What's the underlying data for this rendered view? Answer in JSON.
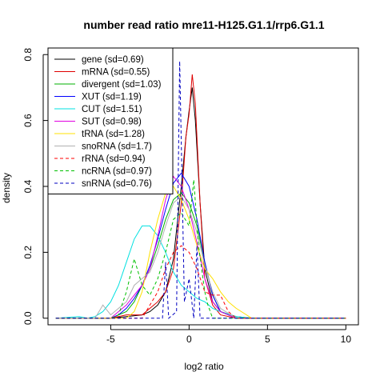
{
  "chart_data": {
    "type": "line",
    "title": "number read ratio mre11-H125.G1.1/rrp6.G1.1",
    "xlabel": "log2 ratio",
    "ylabel": "density",
    "xlim": [
      -9.0,
      10.8
    ],
    "ylim": [
      -0.02,
      0.82
    ],
    "xticks": [
      -5,
      0,
      5,
      10
    ],
    "yticks": [
      0.0,
      0.2,
      0.4,
      0.6,
      0.8
    ],
    "grid": false,
    "legend_position": "top-left",
    "series": [
      {
        "name": "gene (sd=0.69)",
        "color": "#000000",
        "dashed": false,
        "points": [
          [
            -8.5,
            0
          ],
          [
            -5,
            0
          ],
          [
            -4,
            0.005
          ],
          [
            -3,
            0.01
          ],
          [
            -2.5,
            0.02
          ],
          [
            -2,
            0.04
          ],
          [
            -1.5,
            0.08
          ],
          [
            -1,
            0.18
          ],
          [
            -0.5,
            0.4
          ],
          [
            -0.2,
            0.55
          ],
          [
            0,
            0.63
          ],
          [
            0.2,
            0.7
          ],
          [
            0.4,
            0.6
          ],
          [
            0.7,
            0.35
          ],
          [
            1,
            0.15
          ],
          [
            1.5,
            0.05
          ],
          [
            2,
            0.02
          ],
          [
            3,
            0.005
          ],
          [
            4,
            0
          ],
          [
            10,
            0
          ]
        ]
      },
      {
        "name": "mRNA (sd=0.55)",
        "color": "#df0000",
        "dashed": false,
        "points": [
          [
            -8.5,
            0
          ],
          [
            -5,
            0
          ],
          [
            -4,
            0.01
          ],
          [
            -3,
            0.01
          ],
          [
            -2.5,
            0.03
          ],
          [
            -2,
            0.05
          ],
          [
            -1.5,
            0.08
          ],
          [
            -1,
            0.15
          ],
          [
            -0.5,
            0.35
          ],
          [
            -0.2,
            0.55
          ],
          [
            0,
            0.62
          ],
          [
            0.2,
            0.74
          ],
          [
            0.4,
            0.65
          ],
          [
            0.7,
            0.35
          ],
          [
            1,
            0.12
          ],
          [
            1.5,
            0.04
          ],
          [
            2,
            0.01
          ],
          [
            3,
            0
          ],
          [
            10,
            0
          ]
        ]
      },
      {
        "name": "divergent (sd=1.03)",
        "color": "#00b000",
        "dashed": false,
        "points": [
          [
            -8.5,
            0
          ],
          [
            -5,
            0
          ],
          [
            -4.5,
            0.01
          ],
          [
            -4,
            0.02
          ],
          [
            -3.5,
            0.05
          ],
          [
            -3,
            0.1
          ],
          [
            -2.5,
            0.15
          ],
          [
            -2,
            0.22
          ],
          [
            -1.5,
            0.3
          ],
          [
            -1,
            0.36
          ],
          [
            -0.5,
            0.38
          ],
          [
            0,
            0.35
          ],
          [
            0.5,
            0.28
          ],
          [
            1,
            0.17
          ],
          [
            1.5,
            0.07
          ],
          [
            2,
            0.02
          ],
          [
            3,
            0
          ],
          [
            10,
            0
          ]
        ]
      },
      {
        "name": "XUT (sd=1.19)",
        "color": "#0000ff",
        "dashed": false,
        "points": [
          [
            -8.5,
            0
          ],
          [
            -5,
            0
          ],
          [
            -4.5,
            0.01
          ],
          [
            -4,
            0.03
          ],
          [
            -3.5,
            0.06
          ],
          [
            -3,
            0.1
          ],
          [
            -2.5,
            0.16
          ],
          [
            -2,
            0.24
          ],
          [
            -1.5,
            0.33
          ],
          [
            -1,
            0.41
          ],
          [
            -0.5,
            0.44
          ],
          [
            0,
            0.4
          ],
          [
            0.5,
            0.3
          ],
          [
            1,
            0.17
          ],
          [
            1.5,
            0.07
          ],
          [
            2,
            0.02
          ],
          [
            3,
            0
          ],
          [
            10,
            0
          ]
        ]
      },
      {
        "name": "CUT (sd=1.51)",
        "color": "#00e0e0",
        "dashed": false,
        "points": [
          [
            -8.5,
            0
          ],
          [
            -7,
            0.005
          ],
          [
            -6.5,
            0
          ],
          [
            -6,
            0.005
          ],
          [
            -5.5,
            0.02
          ],
          [
            -5,
            0.05
          ],
          [
            -4.5,
            0.1
          ],
          [
            -4,
            0.17
          ],
          [
            -3.5,
            0.24
          ],
          [
            -3,
            0.28
          ],
          [
            -2.5,
            0.28
          ],
          [
            -2,
            0.25
          ],
          [
            -1.5,
            0.2
          ],
          [
            -1,
            0.14
          ],
          [
            -0.5,
            0.1
          ],
          [
            0,
            0.08
          ],
          [
            0.5,
            0.06
          ],
          [
            1,
            0.05
          ],
          [
            1.5,
            0.03
          ],
          [
            2,
            0.02
          ],
          [
            3,
            0.005
          ],
          [
            4,
            0
          ],
          [
            10,
            0
          ]
        ]
      },
      {
        "name": "SUT (sd=0.98)",
        "color": "#e000e0",
        "dashed": false,
        "points": [
          [
            -8.5,
            0
          ],
          [
            -5,
            0
          ],
          [
            -4.5,
            0.02
          ],
          [
            -4,
            0.04
          ],
          [
            -3.5,
            0.07
          ],
          [
            -3,
            0.1
          ],
          [
            -2.5,
            0.15
          ],
          [
            -2,
            0.25
          ],
          [
            -1.5,
            0.36
          ],
          [
            -1,
            0.43
          ],
          [
            -0.5,
            0.4
          ],
          [
            0,
            0.33
          ],
          [
            0.5,
            0.23
          ],
          [
            1,
            0.12
          ],
          [
            1.5,
            0.05
          ],
          [
            2,
            0.02
          ],
          [
            3,
            0
          ],
          [
            10,
            0
          ]
        ]
      },
      {
        "name": "tRNA (sd=1.28)",
        "color": "#ffe000",
        "dashed": false,
        "points": [
          [
            -8.5,
            0
          ],
          [
            -4,
            0
          ],
          [
            -3.5,
            0.02
          ],
          [
            -3,
            0.08
          ],
          [
            -2.5,
            0.2
          ],
          [
            -2,
            0.3
          ],
          [
            -1.5,
            0.38
          ],
          [
            -1,
            0.4
          ],
          [
            -0.5,
            0.36
          ],
          [
            0,
            0.3
          ],
          [
            0.5,
            0.22
          ],
          [
            1,
            0.15
          ],
          [
            1.5,
            0.12
          ],
          [
            2,
            0.08
          ],
          [
            2.5,
            0.05
          ],
          [
            3,
            0.03
          ],
          [
            4,
            0
          ],
          [
            10,
            0
          ]
        ]
      },
      {
        "name": "snoRNA (sd=1.7)",
        "color": "#b0b0b0",
        "dashed": false,
        "points": [
          [
            -8.5,
            0
          ],
          [
            -6,
            0
          ],
          [
            -5.5,
            0.04
          ],
          [
            -5,
            0.01
          ],
          [
            -4.5,
            0.03
          ],
          [
            -4,
            0.05
          ],
          [
            -3.5,
            0.1
          ],
          [
            -3,
            0.12
          ],
          [
            -2.5,
            0.14
          ],
          [
            -2,
            0.2
          ],
          [
            -1.5,
            0.28
          ],
          [
            -1,
            0.35
          ],
          [
            -0.5,
            0.37
          ],
          [
            0,
            0.33
          ],
          [
            0.5,
            0.26
          ],
          [
            1,
            0.16
          ],
          [
            1.5,
            0.08
          ],
          [
            2,
            0.03
          ],
          [
            3,
            0
          ],
          [
            10,
            0
          ]
        ]
      },
      {
        "name": "rRNA (sd=0.94)",
        "color": "#ff0000",
        "dashed": true,
        "points": [
          [
            -8.5,
            0
          ],
          [
            -3,
            0
          ],
          [
            -2.5,
            0.04
          ],
          [
            -2,
            0.08
          ],
          [
            -1.5,
            0.15
          ],
          [
            -1,
            0.2
          ],
          [
            -0.5,
            0.22
          ],
          [
            0,
            0.2
          ],
          [
            0.5,
            0.15
          ],
          [
            1,
            0.08
          ],
          [
            1.5,
            0.07
          ],
          [
            2,
            0.07
          ],
          [
            2.5,
            0.02
          ],
          [
            3,
            0
          ],
          [
            10,
            0
          ]
        ]
      },
      {
        "name": "ncRNA (sd=0.97)",
        "color": "#00c000",
        "dashed": true,
        "points": [
          [
            -8.5,
            0
          ],
          [
            -5,
            0
          ],
          [
            -4.5,
            0.01
          ],
          [
            -4,
            0.08
          ],
          [
            -3.5,
            0.18
          ],
          [
            -3,
            0.1
          ],
          [
            -2.5,
            0.07
          ],
          [
            -2,
            0.12
          ],
          [
            -1.5,
            0.2
          ],
          [
            -1,
            0.3
          ],
          [
            -0.5,
            0.32
          ],
          [
            0,
            0.28
          ],
          [
            0.3,
            0.42
          ],
          [
            0.6,
            0.22
          ],
          [
            1,
            0.08
          ],
          [
            1.2,
            0.04
          ],
          [
            1.5,
            0
          ],
          [
            10,
            0
          ]
        ]
      },
      {
        "name": "snRNA (sd=0.76)",
        "color": "#0000c0",
        "dashed": true,
        "points": [
          [
            -8.5,
            0
          ],
          [
            -1.7,
            0
          ],
          [
            -1.5,
            0.17
          ],
          [
            -1.3,
            0
          ],
          [
            -0.8,
            0.02
          ],
          [
            -0.6,
            0.78
          ],
          [
            -0.3,
            0.05
          ],
          [
            0,
            0.12
          ],
          [
            0.3,
            0
          ],
          [
            0.5,
            0.22
          ],
          [
            0.7,
            0
          ],
          [
            10,
            0
          ]
        ]
      }
    ]
  }
}
